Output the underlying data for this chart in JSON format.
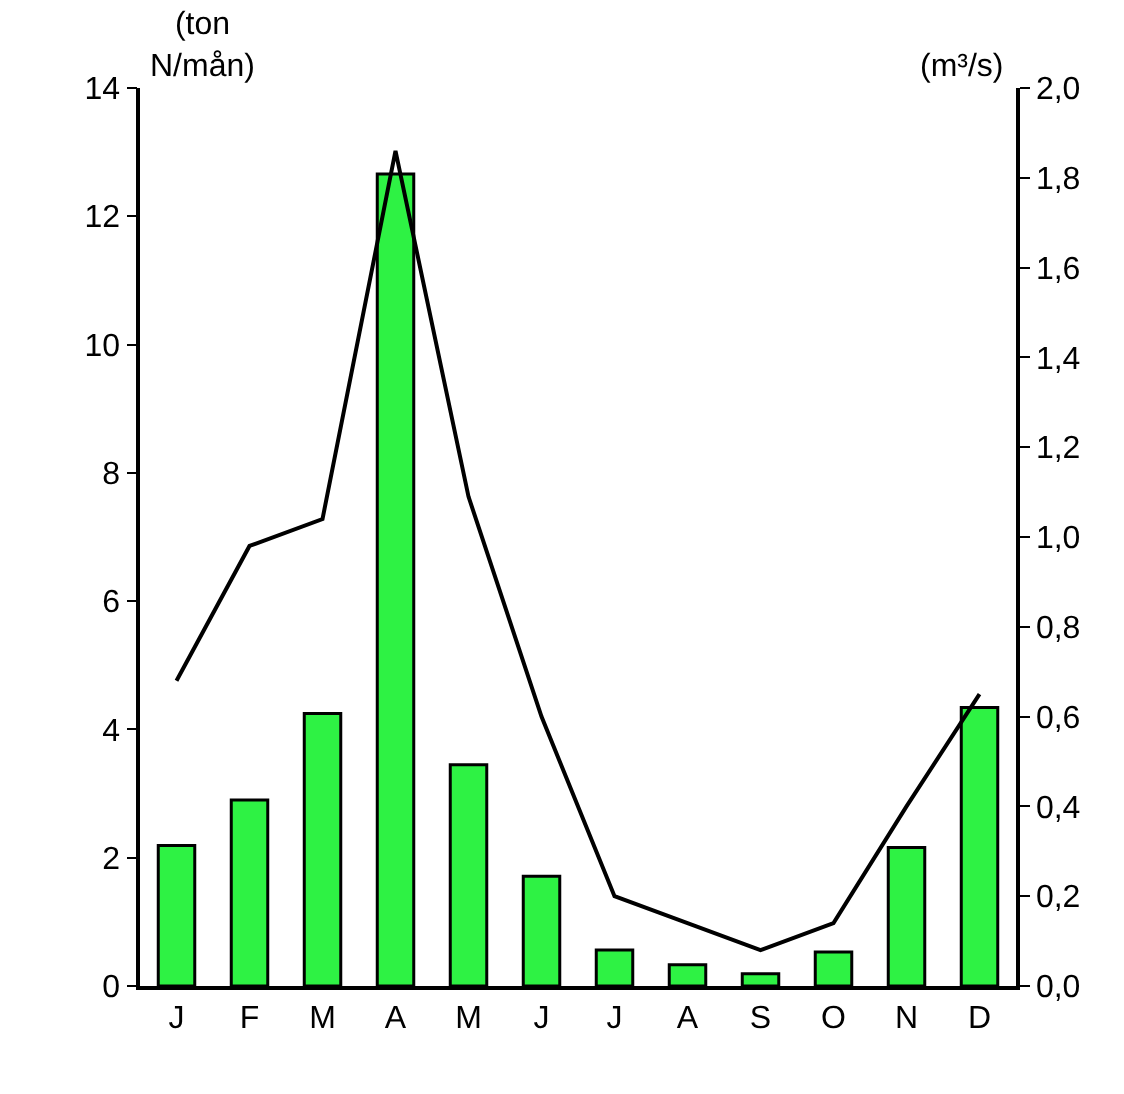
{
  "chart_data": {
    "type": "bar",
    "ylabel": "(ton\nN/mån)",
    "y2label": "(m³/s)",
    "categories": [
      "J",
      "F",
      "M",
      "A",
      "M",
      "J",
      "J",
      "A",
      "S",
      "O",
      "N",
      "D"
    ],
    "series": [
      {
        "color": "#2ef244",
        "values": [
          2.19,
          2.9,
          4.25,
          12.66,
          3.45,
          1.71,
          0.56,
          0.33,
          0.19,
          0.53,
          2.16,
          4.34
        ]
      },
      {
        "type": "line",
        "axis": "y2",
        "color": "#000000",
        "values": [
          0.68,
          0.98,
          1.04,
          1.86,
          1.09,
          0.6,
          0.2,
          0.14,
          0.08,
          0.14,
          0.4,
          0.65
        ]
      }
    ],
    "ylim": [
      0,
      14
    ],
    "yticks": [
      0,
      2,
      4,
      6,
      8,
      10,
      12,
      14
    ],
    "y2lim": [
      0,
      2.0
    ],
    "y2ticks": [
      {
        "value": 0,
        "label": "0,0"
      },
      {
        "value": 0.2,
        "label": "0,2"
      },
      {
        "value": 0.4,
        "label": "0,4"
      },
      {
        "value": 0.6,
        "label": "0,6"
      },
      {
        "value": 0.8,
        "label": "0,8"
      },
      {
        "value": 1.0,
        "label": "1,0"
      },
      {
        "value": 1.2,
        "label": "1,2"
      },
      {
        "value": 1.4,
        "label": "1,4"
      },
      {
        "value": 1.6,
        "label": "1,6"
      },
      {
        "value": 1.8,
        "label": "1,8"
      },
      {
        "value": 2.0,
        "label": "2,0"
      }
    ],
    "marker": "none",
    "line_style": "solid"
  }
}
